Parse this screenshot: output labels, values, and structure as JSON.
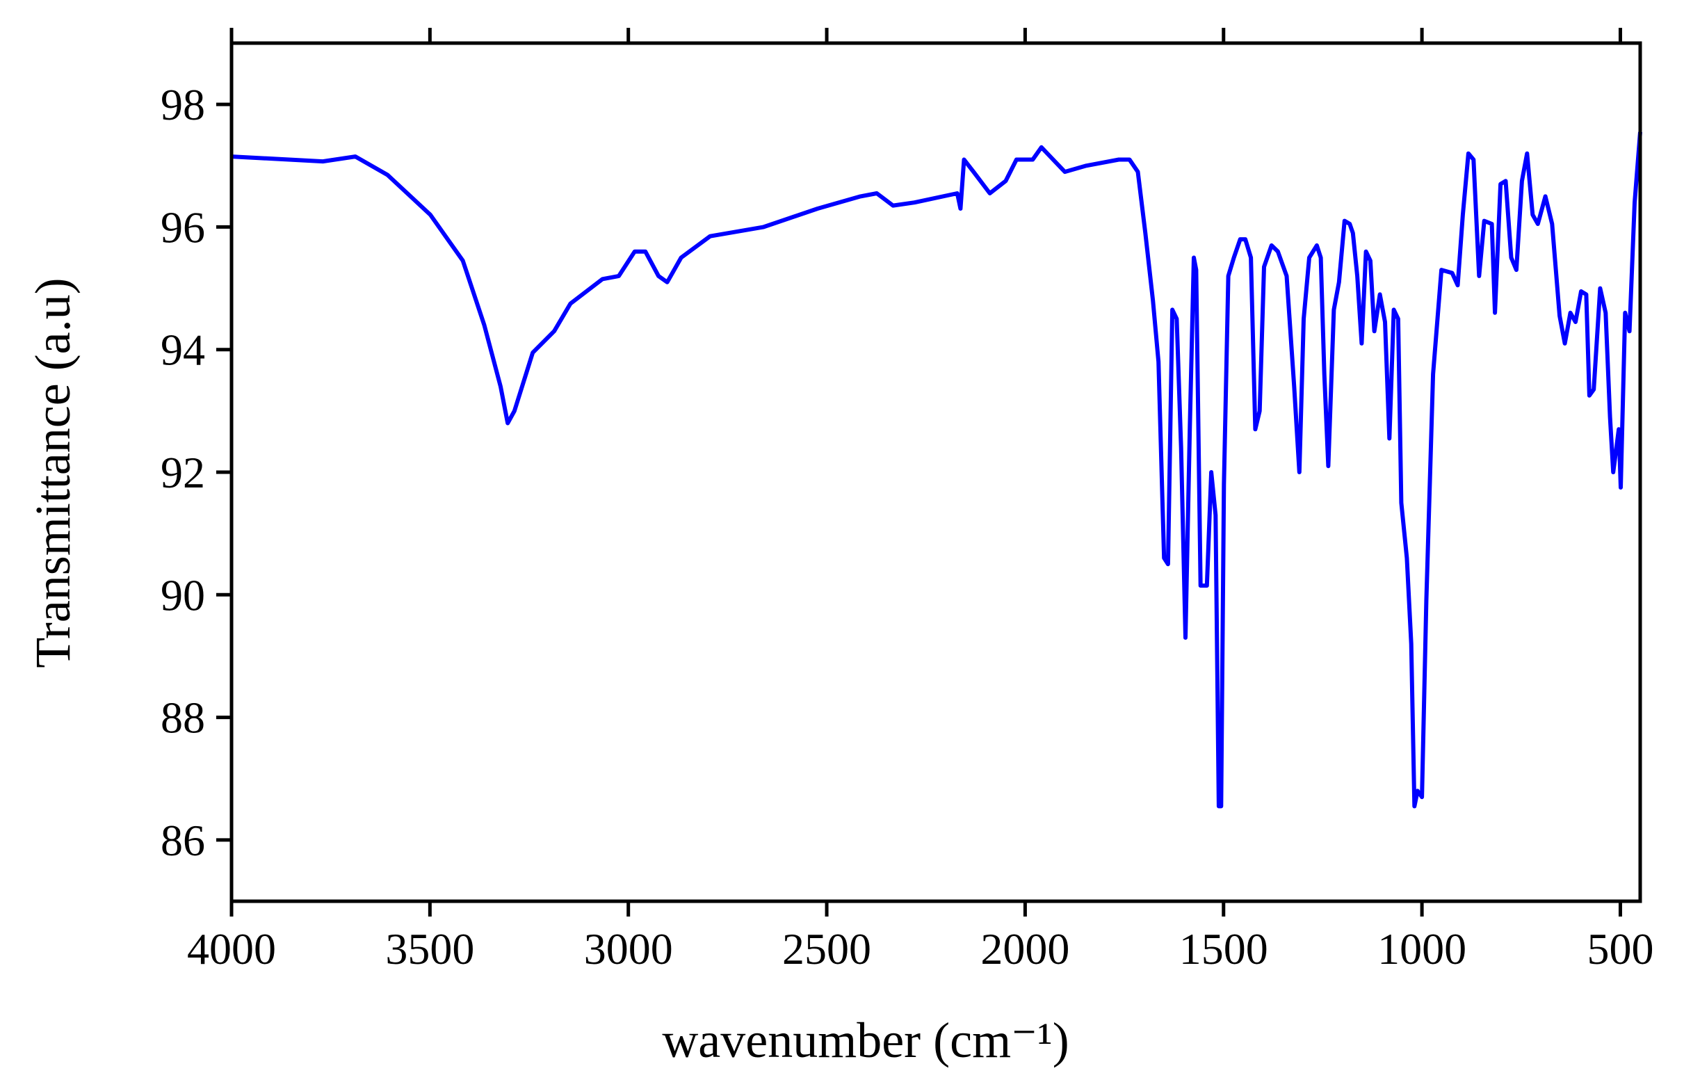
{
  "chart_data": {
    "type": "line",
    "xlabel": "wavenumber (cm⁻¹)",
    "ylabel": "Transmittance (a.u)",
    "color": "#0000ff",
    "xlim": [
      4000,
      450
    ],
    "ylim": [
      85,
      99
    ],
    "xticks": [
      4000,
      3500,
      3000,
      2500,
      2000,
      1500,
      1000,
      500
    ],
    "yticks": [
      86,
      88,
      90,
      92,
      94,
      96,
      98
    ],
    "x": [
      4000,
      3770,
      3688,
      3607,
      3499,
      3417,
      3363,
      3322,
      3304,
      3287,
      3241,
      3187,
      3146,
      3065,
      3024,
      2984,
      2957,
      2924,
      2902,
      2867,
      2794,
      2659,
      2523,
      2415,
      2374,
      2333,
      2279,
      2171,
      2163,
      2154,
      2130,
      2089,
      2049,
      2022,
      1981,
      1959,
      1900,
      1846,
      1764,
      1737,
      1716,
      1697,
      1678,
      1664,
      1650,
      1640,
      1629,
      1618,
      1607,
      1596,
      1585,
      1575,
      1569,
      1558,
      1542,
      1531,
      1520,
      1512,
      1506,
      1499,
      1488,
      1474,
      1458,
      1445,
      1431,
      1420,
      1409,
      1398,
      1379,
      1363,
      1341,
      1322,
      1309,
      1298,
      1284,
      1265,
      1255,
      1246,
      1236,
      1222,
      1209,
      1195,
      1182,
      1174,
      1163,
      1152,
      1141,
      1130,
      1120,
      1106,
      1093,
      1082,
      1071,
      1060,
      1052,
      1038,
      1027,
      1019,
      1011,
      1000,
      989,
      972,
      951,
      924,
      910,
      897,
      883,
      870,
      856,
      843,
      824,
      816,
      802,
      789,
      775,
      762,
      748,
      735,
      721,
      708,
      689,
      672,
      653,
      640,
      626,
      613,
      599,
      586,
      578,
      567,
      551,
      537,
      526,
      518,
      504,
      499,
      488,
      477,
      464,
      450
    ],
    "values": [
      97.15,
      97.07,
      97.15,
      96.85,
      96.2,
      95.45,
      94.4,
      93.4,
      92.8,
      93.0,
      93.95,
      94.3,
      94.75,
      95.15,
      95.2,
      95.6,
      95.6,
      95.2,
      95.1,
      95.5,
      95.85,
      96.0,
      96.3,
      96.5,
      96.55,
      96.35,
      96.4,
      96.55,
      96.3,
      97.1,
      96.9,
      96.55,
      96.75,
      97.1,
      97.1,
      97.3,
      96.9,
      97.0,
      97.1,
      97.1,
      96.9,
      95.9,
      94.8,
      93.8,
      90.6,
      90.5,
      94.65,
      94.5,
      92.4,
      89.3,
      92.75,
      95.5,
      95.3,
      90.15,
      90.15,
      92.0,
      91.3,
      86.55,
      86.55,
      91.8,
      95.2,
      95.5,
      95.8,
      95.8,
      95.5,
      92.7,
      93.0,
      95.35,
      95.7,
      95.6,
      95.2,
      93.4,
      92.0,
      94.5,
      95.5,
      95.7,
      95.5,
      93.6,
      92.1,
      94.65,
      95.1,
      96.1,
      96.05,
      95.9,
      95.2,
      94.1,
      95.6,
      95.45,
      94.3,
      94.9,
      94.45,
      92.55,
      94.65,
      94.5,
      91.5,
      90.6,
      89.2,
      86.55,
      86.8,
      86.7,
      89.9,
      93.6,
      95.3,
      95.25,
      95.05,
      96.2,
      97.2,
      97.1,
      95.2,
      96.1,
      96.05,
      94.6,
      96.7,
      96.75,
      95.5,
      95.3,
      96.75,
      97.2,
      96.2,
      96.05,
      96.5,
      96.05,
      94.55,
      94.1,
      94.6,
      94.45,
      94.95,
      94.9,
      93.25,
      93.35,
      95.0,
      94.6,
      92.9,
      92.0,
      92.7,
      91.75,
      94.6,
      94.3,
      96.4,
      97.55
    ]
  }
}
